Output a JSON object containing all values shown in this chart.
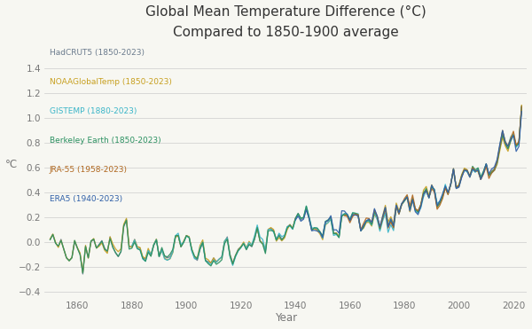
{
  "title": "Global Mean Temperature Difference (°C)",
  "subtitle": "Compared to 1850-1900 average",
  "xlabel": "Year",
  "ylabel": "°C",
  "xlim": [
    1848,
    2025
  ],
  "ylim": [
    -0.45,
    1.6
  ],
  "yticks": [
    -0.4,
    -0.2,
    0.0,
    0.2,
    0.4,
    0.6,
    0.8,
    1.0,
    1.2,
    1.4
  ],
  "xticks": [
    1860,
    1880,
    1900,
    1920,
    1940,
    1960,
    1980,
    2000,
    2020
  ],
  "background_color": "#f7f7f2",
  "series": [
    {
      "label": "HadCRUT5 (1850-2023)",
      "color": "#6b7b8d",
      "linewidth": 0.9,
      "start_year": 1850
    },
    {
      "label": "NOAAGlobalTemp (1850-2023)",
      "color": "#c8a020",
      "linewidth": 0.9,
      "start_year": 1850
    },
    {
      "label": "GISTEMP (1880-2023)",
      "color": "#3ab5c8",
      "linewidth": 0.9,
      "start_year": 1880
    },
    {
      "label": "Berkeley Earth (1850-2023)",
      "color": "#2a9060",
      "linewidth": 0.9,
      "start_year": 1850
    },
    {
      "label": "JRA-55 (1958-2023)",
      "color": "#b06820",
      "linewidth": 0.9,
      "start_year": 1958
    },
    {
      "label": "ERA5 (1940-2023)",
      "color": "#3060a8",
      "linewidth": 0.9,
      "start_year": 1940
    }
  ]
}
